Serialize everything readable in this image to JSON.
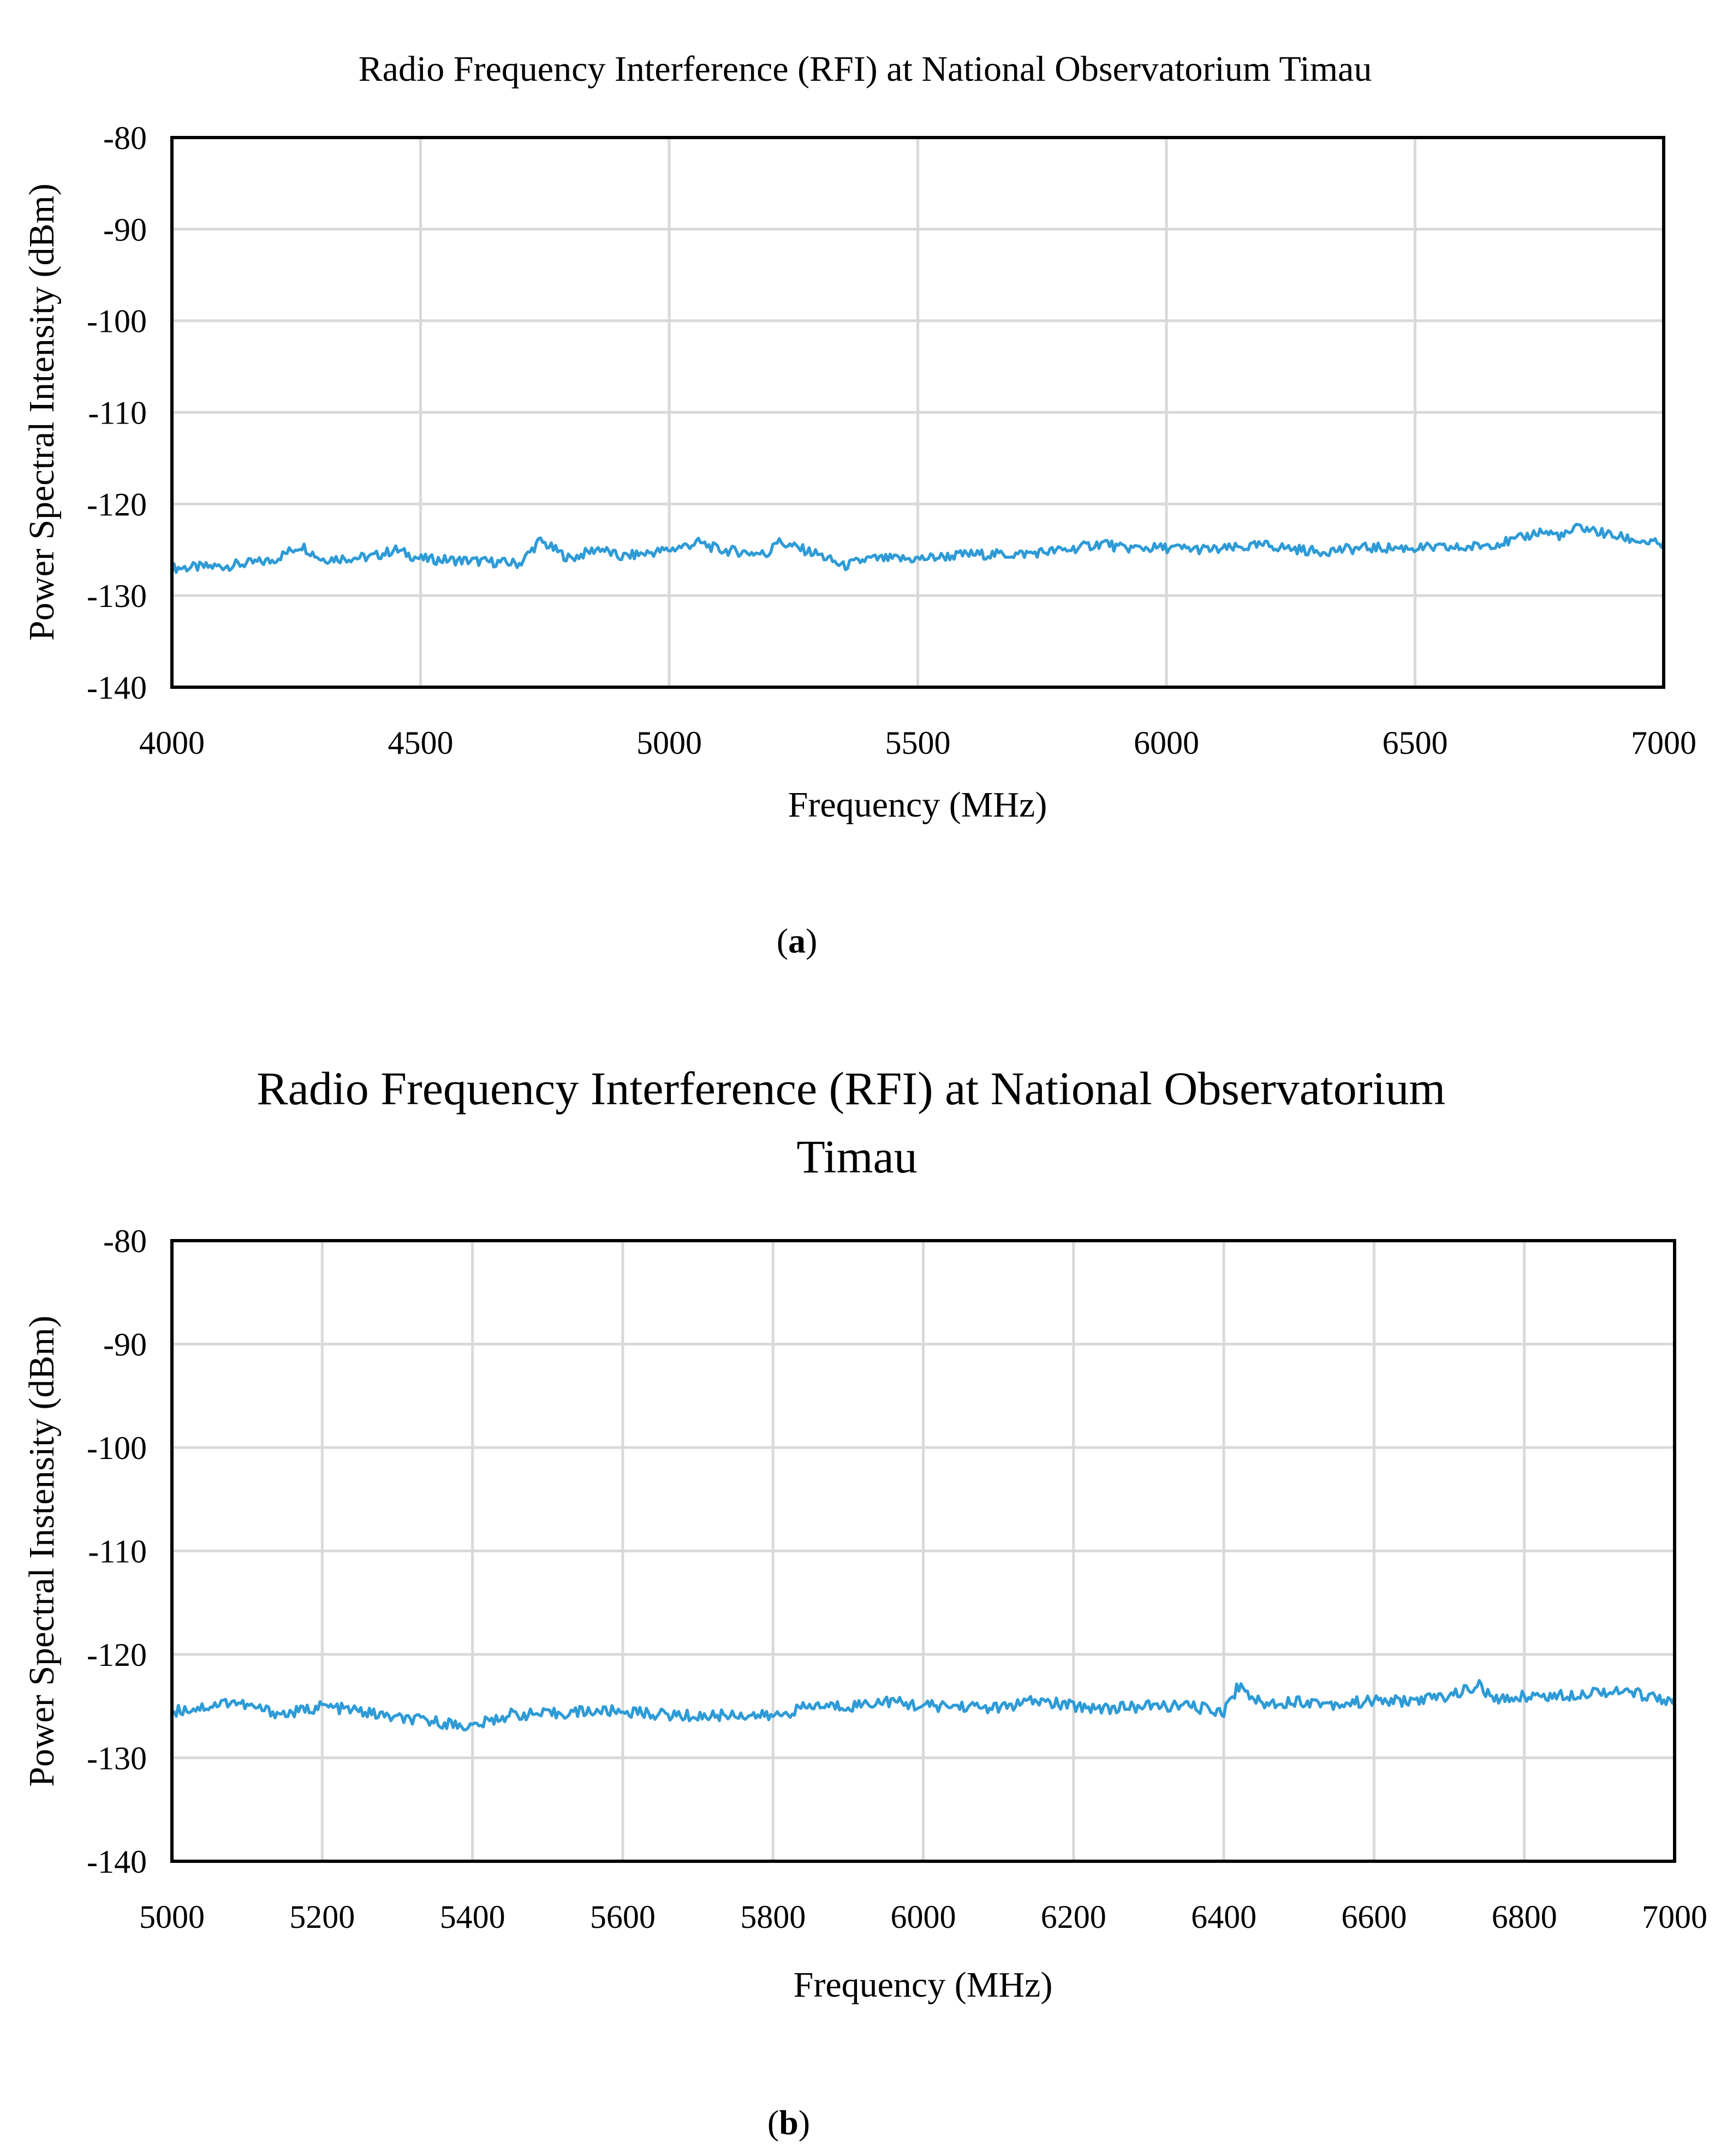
{
  "colors": {
    "series": "#2E9BD6",
    "grid": "#d9d9d9",
    "axis": "#000000"
  },
  "chart_data": [
    {
      "type": "line",
      "title": "Radio Frequency Interference (RFI) at National Observatorium  Timau",
      "xlabel": "Frequency (MHz)",
      "ylabel": "Power Spectral Intensity (dBm)",
      "xlim": [
        4000,
        7000
      ],
      "ylim": [
        -140,
        -80
      ],
      "x_ticks": [
        "4000",
        "4500",
        "5000",
        "5500",
        "6000",
        "6500",
        "7000"
      ],
      "y_ticks": [
        "-80",
        "-90",
        "-100",
        "-110",
        "-120",
        "-130",
        "-140"
      ],
      "panel_label": "a",
      "series": [
        {
          "name": "RFI",
          "x": [
            4000,
            4100,
            4200,
            4260,
            4300,
            4400,
            4450,
            4500,
            4600,
            4700,
            4740,
            4800,
            4860,
            4900,
            5000,
            5060,
            5100,
            5200,
            5210,
            5300,
            5350,
            5400,
            5500,
            5600,
            5700,
            5800,
            5880,
            5900,
            6000,
            6100,
            6200,
            6300,
            6400,
            6500,
            6600,
            6700,
            6750,
            6800,
            6830,
            6900,
            7000
          ],
          "values": [
            -127,
            -126.8,
            -126.2,
            -124.5,
            -126,
            -125.8,
            -125,
            -126,
            -126.2,
            -126.5,
            -124,
            -126,
            -124.8,
            -125.8,
            -125,
            -124.2,
            -125,
            -125.5,
            -124,
            -125.5,
            -126.8,
            -126,
            -126,
            -125.5,
            -125.5,
            -125,
            -124.2,
            -124.8,
            -124.8,
            -125,
            -124.5,
            -125.2,
            -124.8,
            -124.8,
            -124.8,
            -124,
            -123,
            -123.5,
            -122.5,
            -123.5,
            -124.5
          ]
        }
      ]
    },
    {
      "type": "line",
      "title": "Radio Frequency Interference (RFI) at National Observatorium Timau",
      "xlabel": "Frequency (MHz)",
      "ylabel": "Power Spectral Instensity (dBm)",
      "xlim": [
        5000,
        7000
      ],
      "ylim": [
        -140,
        -80
      ],
      "x_ticks": [
        "5000",
        "5200",
        "5400",
        "5600",
        "5800",
        "6000",
        "6200",
        "6400",
        "6600",
        "6800",
        "7000"
      ],
      "y_ticks": [
        "-80",
        "-90",
        "-100",
        "-110",
        "-120",
        "-130",
        "-140"
      ],
      "panel_label": "b",
      "series": [
        {
          "name": "RFI",
          "x": [
            5000,
            5050,
            5080,
            5100,
            5150,
            5200,
            5250,
            5300,
            5350,
            5400,
            5450,
            5500,
            5550,
            5600,
            5650,
            5700,
            5750,
            5800,
            5850,
            5900,
            5950,
            6000,
            6050,
            6100,
            6150,
            6200,
            6250,
            6300,
            6350,
            6400,
            6420,
            6450,
            6500,
            6550,
            6600,
            6650,
            6700,
            6740,
            6760,
            6800,
            6850,
            6900,
            6950,
            7000
          ],
          "values": [
            -125.5,
            -125,
            -124.5,
            -125,
            -125.8,
            -125,
            -125.5,
            -126.2,
            -126.5,
            -127,
            -125.8,
            -125.8,
            -125.5,
            -125.5,
            -125.8,
            -126,
            -125.8,
            -126,
            -125,
            -125,
            -124.5,
            -125,
            -125,
            -125.2,
            -124.5,
            -125,
            -125.2,
            -125,
            -125,
            -125.5,
            -123,
            -124.8,
            -124.5,
            -124.8,
            -124.5,
            -124.5,
            -124,
            -123,
            -124.5,
            -124,
            -124,
            -123.5,
            -123.8,
            -124.5
          ]
        }
      ]
    }
  ]
}
